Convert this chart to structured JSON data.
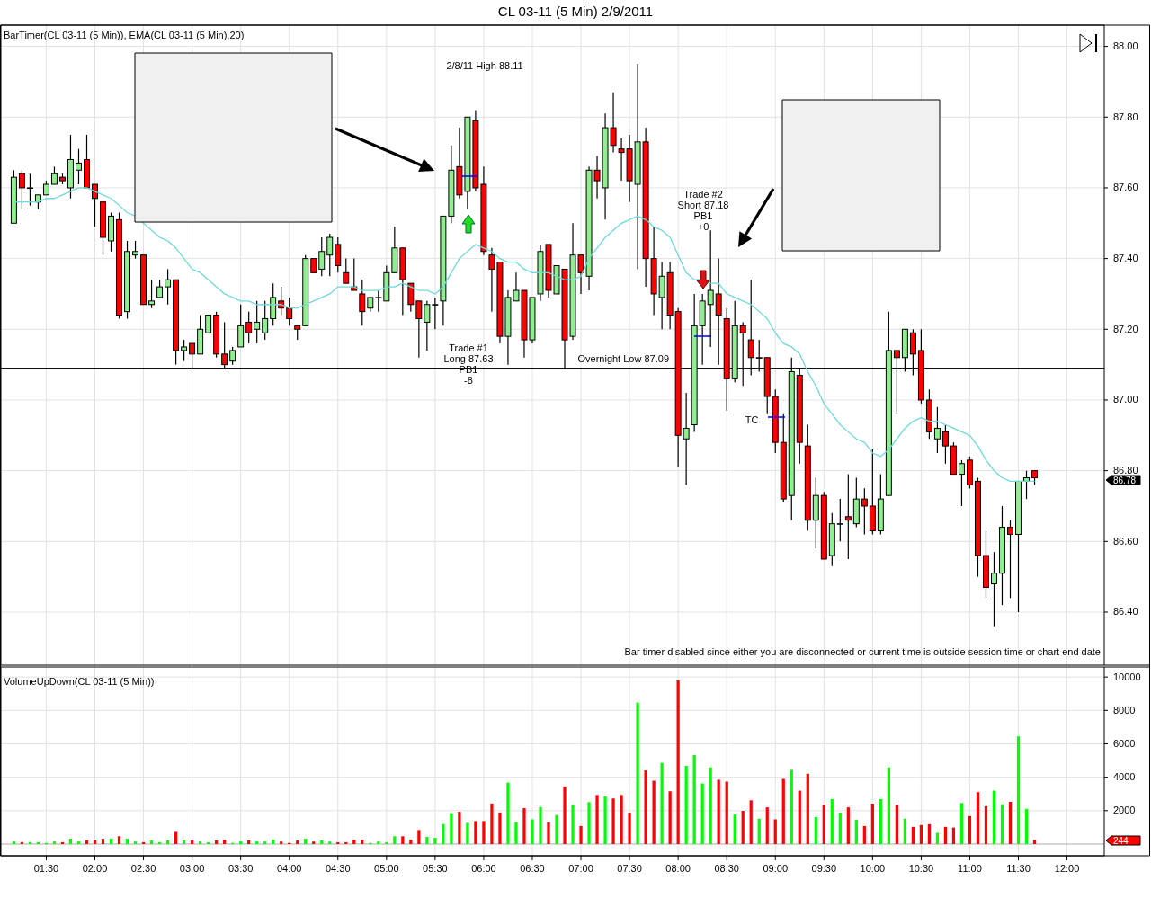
{
  "chart_data": [
    {
      "type": "candlestick",
      "title": "CL 03-11 (5 Min)  2/9/2011",
      "subtitle": "BarTimer(CL 03-11 (5 Min)), EMA(CL 03-11 (5 Min),20)",
      "x": [
        "2011-02-09T01:10",
        "2011-02-09T01:15",
        "2011-02-09T01:20",
        "2011-02-09T01:25",
        "2011-02-09T01:30",
        "2011-02-09T01:35",
        "2011-02-09T01:40",
        "2011-02-09T01:45",
        "2011-02-09T01:50",
        "2011-02-09T01:55",
        "2011-02-09T02:00",
        "2011-02-09T02:05",
        "2011-02-09T02:10",
        "2011-02-09T02:15",
        "2011-02-09T02:20",
        "2011-02-09T02:25",
        "2011-02-09T02:30",
        "2011-02-09T02:35",
        "2011-02-09T02:40",
        "2011-02-09T02:45",
        "2011-02-09T02:50",
        "2011-02-09T02:55",
        "2011-02-09T03:00",
        "2011-02-09T03:05",
        "2011-02-09T03:10",
        "2011-02-09T03:15",
        "2011-02-09T03:20",
        "2011-02-09T03:25",
        "2011-02-09T03:30",
        "2011-02-09T03:35",
        "2011-02-09T03:40",
        "2011-02-09T03:45",
        "2011-02-09T03:50",
        "2011-02-09T03:55",
        "2011-02-09T04:00",
        "2011-02-09T04:05",
        "2011-02-09T04:10",
        "2011-02-09T04:15",
        "2011-02-09T04:20",
        "2011-02-09T04:25",
        "2011-02-09T04:30",
        "2011-02-09T04:35",
        "2011-02-09T04:40",
        "2011-02-09T04:45",
        "2011-02-09T04:50",
        "2011-02-09T04:55",
        "2011-02-09T05:00",
        "2011-02-09T05:05",
        "2011-02-09T05:10",
        "2011-02-09T05:15",
        "2011-02-09T05:20",
        "2011-02-09T05:25",
        "2011-02-09T05:30",
        "2011-02-09T05:35",
        "2011-02-09T05:40",
        "2011-02-09T05:45",
        "2011-02-09T05:50",
        "2011-02-09T05:55",
        "2011-02-09T06:00",
        "2011-02-09T06:05",
        "2011-02-09T06:10",
        "2011-02-09T06:15",
        "2011-02-09T06:20",
        "2011-02-09T06:25",
        "2011-02-09T06:30",
        "2011-02-09T06:35",
        "2011-02-09T06:40",
        "2011-02-09T06:45",
        "2011-02-09T06:50",
        "2011-02-09T06:55",
        "2011-02-09T07:00",
        "2011-02-09T07:05",
        "2011-02-09T07:10",
        "2011-02-09T07:15",
        "2011-02-09T07:20",
        "2011-02-09T07:25",
        "2011-02-09T07:30",
        "2011-02-09T07:35",
        "2011-02-09T07:40",
        "2011-02-09T07:45",
        "2011-02-09T07:50",
        "2011-02-09T07:55",
        "2011-02-09T08:00",
        "2011-02-09T08:05",
        "2011-02-09T08:10",
        "2011-02-09T08:15",
        "2011-02-09T08:20",
        "2011-02-09T08:25",
        "2011-02-09T08:30",
        "2011-02-09T08:35",
        "2011-02-09T08:40",
        "2011-02-09T08:45",
        "2011-02-09T08:50",
        "2011-02-09T08:55",
        "2011-02-09T09:00",
        "2011-02-09T09:05",
        "2011-02-09T09:10",
        "2011-02-09T09:15",
        "2011-02-09T09:20",
        "2011-02-09T09:25",
        "2011-02-09T09:30",
        "2011-02-09T09:35",
        "2011-02-09T09:40",
        "2011-02-09T09:45",
        "2011-02-09T09:50",
        "2011-02-09T09:55",
        "2011-02-09T10:00",
        "2011-02-09T10:05",
        "2011-02-09T10:10",
        "2011-02-09T10:15",
        "2011-02-09T10:20",
        "2011-02-09T10:25",
        "2011-02-09T10:30",
        "2011-02-09T10:35",
        "2011-02-09T10:40",
        "2011-02-09T10:45",
        "2011-02-09T10:50",
        "2011-02-09T10:55",
        "2011-02-09T11:00",
        "2011-02-09T11:05",
        "2011-02-09T11:10",
        "2011-02-09T11:15",
        "2011-02-09T11:20",
        "2011-02-09T11:25",
        "2011-02-09T11:30",
        "2011-02-09T11:35",
        "2011-02-09T11:40"
      ],
      "ohlc": [
        [
          87.5,
          87.65,
          87.5,
          87.63
        ],
        [
          87.64,
          87.65,
          87.54,
          87.6
        ],
        [
          87.6,
          87.64,
          87.55,
          87.6
        ],
        [
          87.56,
          87.58,
          87.54,
          87.58
        ],
        [
          87.58,
          87.62,
          87.58,
          87.61
        ],
        [
          87.61,
          87.66,
          87.61,
          87.64
        ],
        [
          87.63,
          87.64,
          87.61,
          87.62
        ],
        [
          87.6,
          87.75,
          87.57,
          87.68
        ],
        [
          87.65,
          87.71,
          87.61,
          87.67
        ],
        [
          87.68,
          87.75,
          87.6,
          87.6
        ],
        [
          87.61,
          87.61,
          87.49,
          87.57
        ],
        [
          87.56,
          87.56,
          87.41,
          87.46
        ],
        [
          87.45,
          87.53,
          87.42,
          87.52
        ],
        [
          87.51,
          87.53,
          87.23,
          87.24
        ],
        [
          87.25,
          87.45,
          87.23,
          87.42
        ],
        [
          87.41,
          87.45,
          87.4,
          87.42
        ],
        [
          87.41,
          87.41,
          87.27,
          87.27
        ],
        [
          87.27,
          87.34,
          87.26,
          87.28
        ],
        [
          87.29,
          87.34,
          87.29,
          87.32
        ],
        [
          87.32,
          87.37,
          87.27,
          87.34
        ],
        [
          87.34,
          87.34,
          87.1,
          87.14
        ],
        [
          87.14,
          87.17,
          87.11,
          87.15
        ],
        [
          87.16,
          87.16,
          87.09,
          87.13
        ],
        [
          87.13,
          87.24,
          87.13,
          87.2
        ],
        [
          87.19,
          87.24,
          87.19,
          87.24
        ],
        [
          87.24,
          87.25,
          87.12,
          87.13
        ],
        [
          87.13,
          87.22,
          87.09,
          87.1
        ],
        [
          87.11,
          87.15,
          87.1,
          87.14
        ],
        [
          87.15,
          87.27,
          87.15,
          87.21
        ],
        [
          87.22,
          87.25,
          87.16,
          87.19
        ],
        [
          87.2,
          87.28,
          87.16,
          87.22
        ],
        [
          87.19,
          87.28,
          87.17,
          87.23
        ],
        [
          87.23,
          87.33,
          87.21,
          87.29
        ],
        [
          87.28,
          87.32,
          87.24,
          87.26
        ],
        [
          87.26,
          87.29,
          87.21,
          87.23
        ],
        [
          87.21,
          87.21,
          87.17,
          87.2
        ],
        [
          87.21,
          87.41,
          87.21,
          87.4
        ],
        [
          87.4,
          87.4,
          87.36,
          87.36
        ],
        [
          87.37,
          87.46,
          87.35,
          87.42
        ],
        [
          87.41,
          87.47,
          87.35,
          87.46
        ],
        [
          87.44,
          87.46,
          87.36,
          87.38
        ],
        [
          87.36,
          87.4,
          87.33,
          87.33
        ],
        [
          87.32,
          87.4,
          87.31,
          87.31
        ],
        [
          87.3,
          87.34,
          87.21,
          87.25
        ],
        [
          87.26,
          87.29,
          87.25,
          87.29
        ],
        [
          87.29,
          87.31,
          87.25,
          87.29
        ],
        [
          87.28,
          87.38,
          87.28,
          87.36
        ],
        [
          87.36,
          87.49,
          87.36,
          87.43
        ],
        [
          87.43,
          87.43,
          87.24,
          87.34
        ],
        [
          87.33,
          87.33,
          87.25,
          87.27
        ],
        [
          87.28,
          87.28,
          87.12,
          87.23
        ],
        [
          87.22,
          87.28,
          87.14,
          87.27
        ],
        [
          87.27,
          87.29,
          87.2,
          87.27
        ],
        [
          87.28,
          87.52,
          87.21,
          87.52
        ],
        [
          87.52,
          87.72,
          87.5,
          87.65
        ],
        [
          87.66,
          87.77,
          87.57,
          87.58
        ],
        [
          87.59,
          87.8,
          87.54,
          87.8
        ],
        [
          87.79,
          87.82,
          87.59,
          87.6
        ],
        [
          87.61,
          87.66,
          87.41,
          87.42
        ],
        [
          87.41,
          87.43,
          87.25,
          87.37
        ],
        [
          87.39,
          87.39,
          87.16,
          87.18
        ],
        [
          87.18,
          87.31,
          87.1,
          87.29
        ],
        [
          87.28,
          87.36,
          87.28,
          87.31
        ],
        [
          87.31,
          87.31,
          87.12,
          87.17
        ],
        [
          87.17,
          87.29,
          87.16,
          87.29
        ],
        [
          87.3,
          87.44,
          87.28,
          87.42
        ],
        [
          87.44,
          87.44,
          87.29,
          87.31
        ],
        [
          87.3,
          87.38,
          87.3,
          87.38
        ],
        [
          87.37,
          87.37,
          87.09,
          87.17
        ],
        [
          87.18,
          87.5,
          87.17,
          87.41
        ],
        [
          87.41,
          87.41,
          87.3,
          87.36
        ],
        [
          87.35,
          87.66,
          87.31,
          87.65
        ],
        [
          87.65,
          87.69,
          87.57,
          87.62
        ],
        [
          87.6,
          87.81,
          87.51,
          87.77
        ],
        [
          87.77,
          87.87,
          87.7,
          87.72
        ],
        [
          87.71,
          87.74,
          87.62,
          87.7
        ],
        [
          87.71,
          87.75,
          87.56,
          87.62
        ],
        [
          87.61,
          87.95,
          87.37,
          87.73
        ],
        [
          87.73,
          87.77,
          87.32,
          87.4
        ],
        [
          87.4,
          87.49,
          87.24,
          87.3
        ],
        [
          87.29,
          87.39,
          87.2,
          87.35
        ],
        [
          87.36,
          87.39,
          87.2,
          87.24
        ],
        [
          87.25,
          87.26,
          86.81,
          86.9
        ],
        [
          86.89,
          87.02,
          86.76,
          86.92
        ],
        [
          86.93,
          87.3,
          86.91,
          87.21
        ],
        [
          87.21,
          87.3,
          87.1,
          87.28
        ],
        [
          87.27,
          87.48,
          87.15,
          87.31
        ],
        [
          87.3,
          87.4,
          87.1,
          87.24
        ],
        [
          87.23,
          87.26,
          86.97,
          87.06
        ],
        [
          87.06,
          87.28,
          87.05,
          87.21
        ],
        [
          87.21,
          87.22,
          87.04,
          87.19
        ],
        [
          87.17,
          87.34,
          87.07,
          87.12
        ],
        [
          87.12,
          87.17,
          87.08,
          87.12
        ],
        [
          87.12,
          87.12,
          86.96,
          87.01
        ],
        [
          87.01,
          87.03,
          86.85,
          86.88
        ],
        [
          86.88,
          86.96,
          86.71,
          86.72
        ],
        [
          86.73,
          87.12,
          86.66,
          87.08
        ],
        [
          87.07,
          87.09,
          86.82,
          86.88
        ],
        [
          86.87,
          86.93,
          86.63,
          86.66
        ],
        [
          86.66,
          86.78,
          86.58,
          86.73
        ],
        [
          86.73,
          86.74,
          86.55,
          86.55
        ],
        [
          86.56,
          86.68,
          86.53,
          86.65
        ],
        [
          86.65,
          86.72,
          86.6,
          86.65
        ],
        [
          86.67,
          86.79,
          86.55,
          86.66
        ],
        [
          86.65,
          86.78,
          86.64,
          86.72
        ],
        [
          86.72,
          86.75,
          86.62,
          86.7
        ],
        [
          86.7,
          86.86,
          86.62,
          86.63
        ],
        [
          86.63,
          86.79,
          86.62,
          86.72
        ],
        [
          86.73,
          87.25,
          86.73,
          87.14
        ],
        [
          87.14,
          87.14,
          86.96,
          87.12
        ],
        [
          87.12,
          87.2,
          87.08,
          87.2
        ],
        [
          87.19,
          87.2,
          87.07,
          87.13
        ],
        [
          87.14,
          87.2,
          86.99,
          87.0
        ],
        [
          87.0,
          87.03,
          86.89,
          86.91
        ],
        [
          86.89,
          86.98,
          86.85,
          86.92
        ],
        [
          86.91,
          86.93,
          86.82,
          86.87
        ],
        [
          86.87,
          86.88,
          86.79,
          86.79
        ],
        [
          86.79,
          86.83,
          86.7,
          86.82
        ],
        [
          86.83,
          86.84,
          86.75,
          86.76
        ],
        [
          86.77,
          86.78,
          86.5,
          86.56
        ],
        [
          86.56,
          86.63,
          86.44,
          86.47
        ],
        [
          86.48,
          86.57,
          86.36,
          86.51
        ],
        [
          86.51,
          86.7,
          86.42,
          86.64
        ],
        [
          86.64,
          86.66,
          86.44,
          86.62
        ],
        [
          86.62,
          86.77,
          86.4,
          86.77
        ],
        [
          86.77,
          86.8,
          86.72,
          86.78
        ],
        [
          86.8,
          86.8,
          86.76,
          86.78
        ]
      ],
      "colors": [
        "#90ee90",
        "#ff0000",
        "#90ee90",
        "#90ee90",
        "#90ee90",
        "#90ee90",
        "#ff0000",
        "#90ee90",
        "#90ee90",
        "#ff0000",
        "#ff0000",
        "#ff0000",
        "#90ee90",
        "#ff0000",
        "#90ee90",
        "#90ee90",
        "#ff0000",
        "#90ee90",
        "#90ee90",
        "#90ee90",
        "#ff0000",
        "#90ee90",
        "#ff0000",
        "#90ee90",
        "#90ee90",
        "#ff0000",
        "#ff0000",
        "#90ee90",
        "#90ee90",
        "#ff0000",
        "#90ee90",
        "#90ee90",
        "#90ee90",
        "#ff0000",
        "#ff0000",
        "#ff0000",
        "#90ee90",
        "#ff0000",
        "#90ee90",
        "#90ee90",
        "#ff0000",
        "#ff0000",
        "#ff0000",
        "#ff0000",
        "#90ee90",
        "#90ee90",
        "#90ee90",
        "#90ee90",
        "#ff0000",
        "#ff0000",
        "#ff0000",
        "#90ee90",
        "#90ee90",
        "#90ee90",
        "#90ee90",
        "#ff0000",
        "#90ee90",
        "#ff0000",
        "#ff0000",
        "#ff0000",
        "#ff0000",
        "#90ee90",
        "#90ee90",
        "#ff0000",
        "#90ee90",
        "#90ee90",
        "#ff0000",
        "#90ee90",
        "#ff0000",
        "#90ee90",
        "#ff0000",
        "#90ee90",
        "#ff0000",
        "#90ee90",
        "#ff0000",
        "#ff0000",
        "#ff0000",
        "#90ee90",
        "#ff0000",
        "#ff0000",
        "#90ee90",
        "#ff0000",
        "#ff0000",
        "#90ee90",
        "#90ee90",
        "#90ee90",
        "#90ee90",
        "#ff0000",
        "#ff0000",
        "#90ee90",
        "#ff0000",
        "#ff0000",
        "#90ee90",
        "#ff0000",
        "#ff0000",
        "#ff0000",
        "#90ee90",
        "#ff0000",
        "#ff0000",
        "#90ee90",
        "#ff0000",
        "#90ee90",
        "#90ee90",
        "#ff0000",
        "#90ee90",
        "#ff0000",
        "#ff0000",
        "#90ee90",
        "#90ee90",
        "#ff0000",
        "#90ee90",
        "#ff0000",
        "#ff0000",
        "#ff0000",
        "#90ee90",
        "#ff0000",
        "#ff0000",
        "#90ee90",
        "#ff0000",
        "#ff0000",
        "#ff0000",
        "#90ee90",
        "#90ee90",
        "#ff0000",
        "#90ee90",
        "#90ee90",
        "#ff0000"
      ],
      "series": [
        {
          "type": "line",
          "color": "#70d8d8",
          "values": [
            87.56,
            87.56,
            87.56,
            87.56,
            87.57,
            87.57,
            87.58,
            87.59,
            87.6,
            87.6,
            87.59,
            87.58,
            87.57,
            87.55,
            87.53,
            87.52,
            87.5,
            87.48,
            87.46,
            87.45,
            87.43,
            87.4,
            87.37,
            87.36,
            87.34,
            87.32,
            87.3,
            87.29,
            87.28,
            87.28,
            87.27,
            87.27,
            87.27,
            87.27,
            87.26,
            87.26,
            87.27,
            87.28,
            87.29,
            87.3,
            87.32,
            87.32,
            87.32,
            87.31,
            87.31,
            87.31,
            87.32,
            87.32,
            87.33,
            87.32,
            87.31,
            87.31,
            87.3,
            87.32,
            87.36,
            87.4,
            87.42,
            87.44,
            87.43,
            87.42,
            87.4,
            87.39,
            87.39,
            87.37,
            87.36,
            87.36,
            87.36,
            87.35,
            87.34,
            87.34,
            87.35,
            87.4,
            87.43,
            87.46,
            87.48,
            87.5,
            87.51,
            87.52,
            87.51,
            87.49,
            87.48,
            87.46,
            87.41,
            87.36,
            87.34,
            87.34,
            87.33,
            87.33,
            87.3,
            87.29,
            87.28,
            87.27,
            87.25,
            87.23,
            87.19,
            87.16,
            87.15,
            87.13,
            87.08,
            87.04,
            86.99,
            86.96,
            86.93,
            86.91,
            86.89,
            86.88,
            86.85,
            86.84,
            86.86,
            86.89,
            86.92,
            86.94,
            86.95,
            86.94,
            86.94,
            86.93,
            86.92,
            86.91,
            86.9,
            86.87,
            86.83,
            86.8,
            86.78,
            86.77,
            86.77,
            86.77,
            86.77
          ]
        }
      ],
      "xlim": [
        "2011-02-09T01:02",
        "2011-02-09T12:23"
      ],
      "xticks": [
        {
          "value": "2011-02-09T01:30",
          "label": null
        },
        {
          "value": "2011-02-09T02:00",
          "label": null
        },
        {
          "value": "2011-02-09T02:30",
          "label": null
        },
        {
          "value": "2011-02-09T03:00",
          "label": null
        },
        {
          "value": "2011-02-09T03:30",
          "label": null
        },
        {
          "value": "2011-02-09T04:00",
          "label": null
        },
        {
          "value": "2011-02-09T04:30",
          "label": null
        },
        {
          "value": "2011-02-09T05:00",
          "label": null
        },
        {
          "value": "2011-02-09T05:30",
          "label": null
        },
        {
          "value": "2011-02-09T06:00",
          "label": null
        },
        {
          "value": "2011-02-09T06:30",
          "label": null
        },
        {
          "value": "2011-02-09T07:00",
          "label": null
        },
        {
          "value": "2011-02-09T07:30",
          "label": null
        },
        {
          "value": "2011-02-09T08:00",
          "label": null
        },
        {
          "value": "2011-02-09T08:30",
          "label": null
        },
        {
          "value": "2011-02-09T09:00",
          "label": null
        },
        {
          "value": "2011-02-09T09:30",
          "label": null
        },
        {
          "value": "2011-02-09T10:00",
          "label": null
        },
        {
          "value": "2011-02-09T10:30",
          "label": null
        },
        {
          "value": "2011-02-09T11:00",
          "label": null
        },
        {
          "value": "2011-02-09T11:30",
          "label": null
        },
        {
          "value": "2011-02-09T12:00",
          "label": null
        }
      ],
      "ylim": [
        86.25,
        88.06
      ],
      "yticks": [
        {
          "value": 86.4,
          "label": "86.40"
        },
        {
          "value": 86.6,
          "label": "86.60"
        },
        {
          "value": 86.8,
          "label": "86.80"
        },
        {
          "value": 87.0,
          "label": "87.00"
        },
        {
          "value": 87.2,
          "label": "87.20"
        },
        {
          "value": 87.4,
          "label": "87.40"
        },
        {
          "value": 87.6,
          "label": "87.60"
        },
        {
          "value": 87.8,
          "label": "87.80"
        },
        {
          "value": 88.0,
          "label": "88.00"
        }
      ],
      "grid": true,
      "tick_labels": "y",
      "ref_lines": [
        {
          "axis": "y",
          "value": 87.09,
          "label": "Overnight Low 87.09",
          "color": "#000000"
        }
      ],
      "annotations": [
        "2/8/11 High 88.11",
        "Bar timer disabled since either you are disconnected or current time is outside session time or chart end date",
        "Trade #1\nLong 87.63\nPB1\n-8",
        "Trade #2\nShort 87.18\nPB1\n+0",
        "TC",
        "86.78"
      ]
    },
    {
      "type": "bar",
      "title": "VolumeUpDown(CL 03-11 (5 Min))",
      "x": [
        "2011-02-09T01:10",
        "2011-02-09T01:15",
        "2011-02-09T01:20",
        "2011-02-09T01:25",
        "2011-02-09T01:30",
        "2011-02-09T01:35",
        "2011-02-09T01:40",
        "2011-02-09T01:45",
        "2011-02-09T01:50",
        "2011-02-09T01:55",
        "2011-02-09T02:00",
        "2011-02-09T02:05",
        "2011-02-09T02:10",
        "2011-02-09T02:15",
        "2011-02-09T02:20",
        "2011-02-09T02:25",
        "2011-02-09T02:30",
        "2011-02-09T02:35",
        "2011-02-09T02:40",
        "2011-02-09T02:45",
        "2011-02-09T02:50",
        "2011-02-09T02:55",
        "2011-02-09T03:00",
        "2011-02-09T03:05",
        "2011-02-09T03:10",
        "2011-02-09T03:15",
        "2011-02-09T03:20",
        "2011-02-09T03:25",
        "2011-02-09T03:30",
        "2011-02-09T03:35",
        "2011-02-09T03:40",
        "2011-02-09T03:45",
        "2011-02-09T03:50",
        "2011-02-09T03:55",
        "2011-02-09T04:00",
        "2011-02-09T04:05",
        "2011-02-09T04:10",
        "2011-02-09T04:15",
        "2011-02-09T04:20",
        "2011-02-09T04:25",
        "2011-02-09T04:30",
        "2011-02-09T04:35",
        "2011-02-09T04:40",
        "2011-02-09T04:45",
        "2011-02-09T04:50",
        "2011-02-09T04:55",
        "2011-02-09T05:00",
        "2011-02-09T05:05",
        "2011-02-09T05:10",
        "2011-02-09T05:15",
        "2011-02-09T05:20",
        "2011-02-09T05:25",
        "2011-02-09T05:30",
        "2011-02-09T05:35",
        "2011-02-09T05:40",
        "2011-02-09T05:45",
        "2011-02-09T05:50",
        "2011-02-09T05:55",
        "2011-02-09T06:00",
        "2011-02-09T06:05",
        "2011-02-09T06:10",
        "2011-02-09T06:15",
        "2011-02-09T06:20",
        "2011-02-09T06:25",
        "2011-02-09T06:30",
        "2011-02-09T06:35",
        "2011-02-09T06:40",
        "2011-02-09T06:45",
        "2011-02-09T06:50",
        "2011-02-09T06:55",
        "2011-02-09T07:00",
        "2011-02-09T07:05",
        "2011-02-09T07:10",
        "2011-02-09T07:15",
        "2011-02-09T07:20",
        "2011-02-09T07:25",
        "2011-02-09T07:30",
        "2011-02-09T07:35",
        "2011-02-09T07:40",
        "2011-02-09T07:45",
        "2011-02-09T07:50",
        "2011-02-09T07:55",
        "2011-02-09T08:00",
        "2011-02-09T08:05",
        "2011-02-09T08:10",
        "2011-02-09T08:15",
        "2011-02-09T08:20",
        "2011-02-09T08:25",
        "2011-02-09T08:30",
        "2011-02-09T08:35",
        "2011-02-09T08:40",
        "2011-02-09T08:45",
        "2011-02-09T08:50",
        "2011-02-09T08:55",
        "2011-02-09T09:00",
        "2011-02-09T09:05",
        "2011-02-09T09:10",
        "2011-02-09T09:15",
        "2011-02-09T09:20",
        "2011-02-09T09:25",
        "2011-02-09T09:30",
        "2011-02-09T09:35",
        "2011-02-09T09:40",
        "2011-02-09T09:45",
        "2011-02-09T09:50",
        "2011-02-09T09:55",
        "2011-02-09T10:00",
        "2011-02-09T10:05",
        "2011-02-09T10:10",
        "2011-02-09T10:15",
        "2011-02-09T10:20",
        "2011-02-09T10:25",
        "2011-02-09T10:30",
        "2011-02-09T10:35",
        "2011-02-09T10:40",
        "2011-02-09T10:45",
        "2011-02-09T10:50",
        "2011-02-09T10:55",
        "2011-02-09T11:00",
        "2011-02-09T11:05",
        "2011-02-09T11:10",
        "2011-02-09T11:15",
        "2011-02-09T11:20",
        "2011-02-09T11:25",
        "2011-02-09T11:30",
        "2011-02-09T11:35",
        "2011-02-09T11:40"
      ],
      "values": [
        150,
        110,
        110,
        110,
        70,
        150,
        110,
        320,
        150,
        220,
        220,
        320,
        320,
        470,
        320,
        150,
        110,
        220,
        110,
        220,
        730,
        220,
        220,
        150,
        110,
        220,
        260,
        70,
        150,
        220,
        150,
        150,
        260,
        150,
        70,
        220,
        320,
        150,
        220,
        150,
        110,
        110,
        260,
        260,
        70,
        150,
        110,
        470,
        470,
        260,
        840,
        430,
        370,
        1200,
        1850,
        1940,
        1270,
        1380,
        1380,
        2430,
        1890,
        3680,
        1310,
        2150,
        1480,
        2220,
        1310,
        1740,
        3450,
        2340,
        1080,
        2510,
        2940,
        2850,
        2730,
        2940,
        1880,
        8470,
        4410,
        3790,
        4860,
        3160,
        9790,
        4680,
        5330,
        3630,
        4590,
        3850,
        3740,
        1770,
        1990,
        2620,
        1520,
        2200,
        1480,
        3900,
        4440,
        3200,
        4210,
        1610,
        2350,
        2690,
        1880,
        2200,
        1460,
        1080,
        2420,
        2690,
        4590,
        2350,
        1520,
        1030,
        1140,
        1190,
        670,
        1030,
        990,
        2460,
        1680,
        3110,
        2260,
        3200,
        2380,
        2530,
        6450,
        2110,
        244
      ],
      "colors": [
        "#00ff00",
        "#ff0000",
        "#00ff00",
        "#00ff00",
        "#00ff00",
        "#00ff00",
        "#ff0000",
        "#00ff00",
        "#00ff00",
        "#ff0000",
        "#ff0000",
        "#ff0000",
        "#00ff00",
        "#ff0000",
        "#00ff00",
        "#00ff00",
        "#ff0000",
        "#00ff00",
        "#00ff00",
        "#00ff00",
        "#ff0000",
        "#00ff00",
        "#ff0000",
        "#00ff00",
        "#00ff00",
        "#ff0000",
        "#ff0000",
        "#00ff00",
        "#00ff00",
        "#ff0000",
        "#00ff00",
        "#00ff00",
        "#00ff00",
        "#ff0000",
        "#ff0000",
        "#ff0000",
        "#00ff00",
        "#ff0000",
        "#00ff00",
        "#00ff00",
        "#ff0000",
        "#ff0000",
        "#ff0000",
        "#ff0000",
        "#00ff00",
        "#00ff00",
        "#00ff00",
        "#00ff00",
        "#ff0000",
        "#ff0000",
        "#ff0000",
        "#00ff00",
        "#00ff00",
        "#00ff00",
        "#00ff00",
        "#ff0000",
        "#00ff00",
        "#ff0000",
        "#ff0000",
        "#ff0000",
        "#ff0000",
        "#00ff00",
        "#00ff00",
        "#ff0000",
        "#00ff00",
        "#00ff00",
        "#ff0000",
        "#00ff00",
        "#ff0000",
        "#00ff00",
        "#ff0000",
        "#00ff00",
        "#ff0000",
        "#00ff00",
        "#ff0000",
        "#ff0000",
        "#ff0000",
        "#00ff00",
        "#ff0000",
        "#ff0000",
        "#00ff00",
        "#ff0000",
        "#ff0000",
        "#00ff00",
        "#00ff00",
        "#00ff00",
        "#00ff00",
        "#ff0000",
        "#ff0000",
        "#00ff00",
        "#ff0000",
        "#ff0000",
        "#00ff00",
        "#ff0000",
        "#ff0000",
        "#ff0000",
        "#00ff00",
        "#ff0000",
        "#ff0000",
        "#00ff00",
        "#ff0000",
        "#00ff00",
        "#00ff00",
        "#ff0000",
        "#00ff00",
        "#ff0000",
        "#ff0000",
        "#00ff00",
        "#00ff00",
        "#ff0000",
        "#00ff00",
        "#ff0000",
        "#ff0000",
        "#ff0000",
        "#00ff00",
        "#ff0000",
        "#ff0000",
        "#00ff00",
        "#ff0000",
        "#ff0000",
        "#ff0000",
        "#00ff00",
        "#00ff00",
        "#ff0000",
        "#00ff00",
        "#00ff00",
        "#ff0000"
      ],
      "xlim": [
        "2011-02-09T01:02",
        "2011-02-09T12:23"
      ],
      "xticks": [
        {
          "value": "2011-02-09T01:30",
          "label": "01:30"
        },
        {
          "value": "2011-02-09T02:00",
          "label": "02:00"
        },
        {
          "value": "2011-02-09T02:30",
          "label": "02:30"
        },
        {
          "value": "2011-02-09T03:00",
          "label": "03:00"
        },
        {
          "value": "2011-02-09T03:30",
          "label": "03:30"
        },
        {
          "value": "2011-02-09T04:00",
          "label": "04:00"
        },
        {
          "value": "2011-02-09T04:30",
          "label": "04:30"
        },
        {
          "value": "2011-02-09T05:00",
          "label": "05:00"
        },
        {
          "value": "2011-02-09T05:30",
          "label": "05:30"
        },
        {
          "value": "2011-02-09T06:00",
          "label": "06:00"
        },
        {
          "value": "2011-02-09T06:30",
          "label": "06:30"
        },
        {
          "value": "2011-02-09T07:00",
          "label": "07:00"
        },
        {
          "value": "2011-02-09T07:30",
          "label": "07:30"
        },
        {
          "value": "2011-02-09T08:00",
          "label": "08:00"
        },
        {
          "value": "2011-02-09T08:30",
          "label": "08:30"
        },
        {
          "value": "2011-02-09T09:00",
          "label": "09:00"
        },
        {
          "value": "2011-02-09T09:30",
          "label": "09:30"
        },
        {
          "value": "2011-02-09T10:00",
          "label": "10:00"
        },
        {
          "value": "2011-02-09T10:30",
          "label": "10:30"
        },
        {
          "value": "2011-02-09T11:00",
          "label": "11:00"
        },
        {
          "value": "2011-02-09T11:30",
          "label": "11:30"
        },
        {
          "value": "2011-02-09T12:00",
          "label": "12:00"
        }
      ],
      "ylim": [
        -700,
        10600
      ],
      "yticks": [
        2000,
        4000,
        6000,
        8000,
        10000
      ],
      "grid": true,
      "annotations": [
        "244"
      ]
    }
  ]
}
